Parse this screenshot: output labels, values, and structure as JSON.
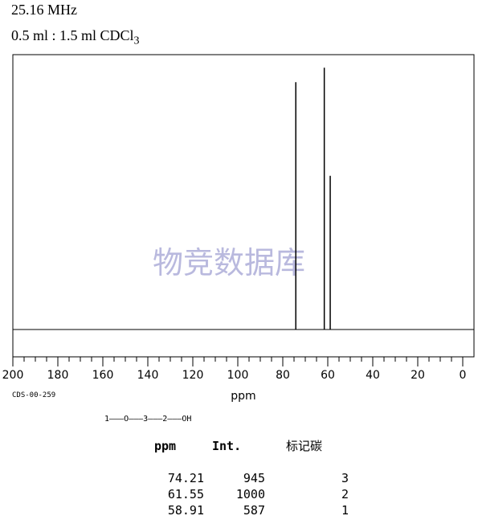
{
  "header": {
    "frequency": "25.16 MHz",
    "solvent_prefix": "0.5 ml : 1.5 ml CDCl",
    "solvent_subscript": "3"
  },
  "watermark": "物竞数据库",
  "sample_code": "CDS-00-259",
  "structure": "1———O———3———2———OH",
  "table": {
    "headers": [
      "ppm",
      "Int.",
      "标记碳"
    ],
    "rows": [
      [
        "74.21",
        "945",
        "3"
      ],
      [
        "61.55",
        "1000",
        "2"
      ],
      [
        "58.91",
        "587",
        "1"
      ]
    ]
  },
  "chart_data": {
    "type": "line",
    "xlabel": "ppm",
    "xlim": [
      200,
      0
    ],
    "x_ticks": [
      "200",
      "180",
      "160",
      "140",
      "120",
      "100",
      "80",
      "60",
      "40",
      "20",
      "0"
    ],
    "ylim": [
      0,
      1050
    ],
    "grid": false,
    "peaks": [
      {
        "ppm": 74.21,
        "intensity": 945
      },
      {
        "ppm": 61.55,
        "intensity": 1000
      },
      {
        "ppm": 58.91,
        "intensity": 587
      }
    ],
    "colors": {
      "line": "#000000",
      "watermark": "#b9b9de"
    }
  }
}
